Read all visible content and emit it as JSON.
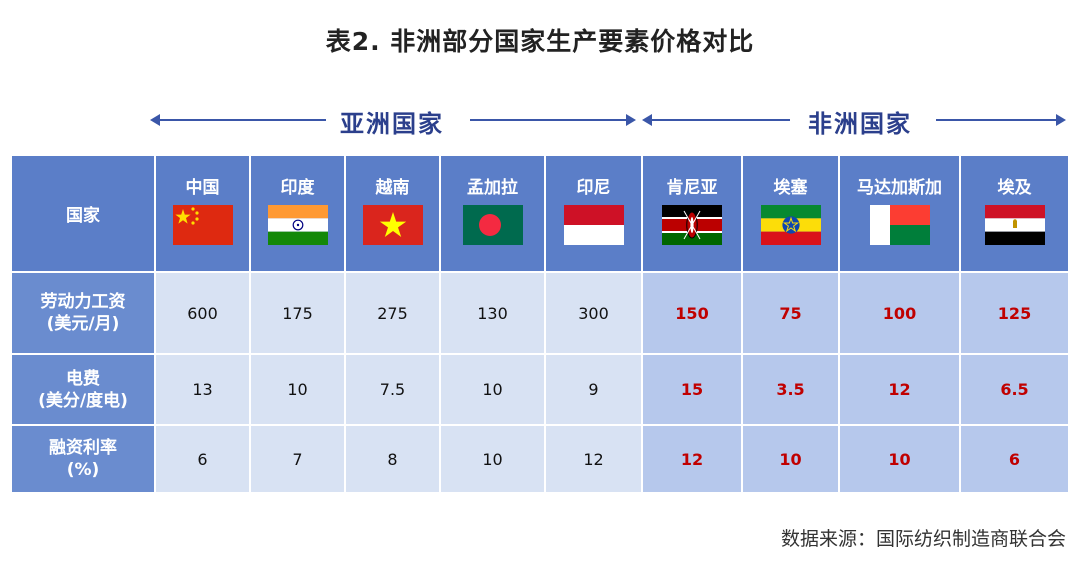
{
  "title": "表2. 非洲部分国家生产要素价格对比",
  "groups": {
    "asia": "亚洲国家",
    "africa": "非洲国家"
  },
  "chart_data": {
    "type": "table",
    "title": "表2. 非洲部分国家生产要素价格对比",
    "corner_label": "国家",
    "columns": [
      {
        "name": "中国",
        "group": "亚洲国家",
        "flag": "china-flag"
      },
      {
        "name": "印度",
        "group": "亚洲国家",
        "flag": "india-flag"
      },
      {
        "name": "越南",
        "group": "亚洲国家",
        "flag": "vietnam-flag"
      },
      {
        "name": "孟加拉",
        "group": "亚洲国家",
        "flag": "bangladesh-flag"
      },
      {
        "name": "印尼",
        "group": "亚洲国家",
        "flag": "indonesia-flag"
      },
      {
        "name": "肯尼亚",
        "group": "非洲国家",
        "flag": "kenya-flag"
      },
      {
        "name": "埃塞",
        "group": "非洲国家",
        "flag": "ethiopia-flag"
      },
      {
        "name": "马达加斯加",
        "group": "非洲国家",
        "flag": "madagascar-flag"
      },
      {
        "name": "埃及",
        "group": "非洲国家",
        "flag": "egypt-flag"
      }
    ],
    "rows": [
      {
        "label": [
          "劳动力工资",
          "(美元/月)"
        ],
        "values": [
          "600",
          "175",
          "275",
          "130",
          "300",
          "150",
          "75",
          "100",
          "125"
        ]
      },
      {
        "label": [
          "电费",
          "(美分/度电)"
        ],
        "values": [
          "13",
          "10",
          "7.5",
          "10",
          "9",
          "15",
          "3.5",
          "12",
          "6.5"
        ]
      },
      {
        "label": [
          "融资利率",
          "(%)"
        ],
        "values": [
          "6",
          "7",
          "8",
          "10",
          "12",
          "12",
          "10",
          "10",
          "6"
        ]
      }
    ],
    "colors": {
      "header": "#5b7ec8",
      "asia_cell": "#d8e2f3",
      "africa_cell": "#b6c8ec",
      "africa_text": "#c00000"
    }
  },
  "source": "数据来源：国际纺织制造商联合会"
}
